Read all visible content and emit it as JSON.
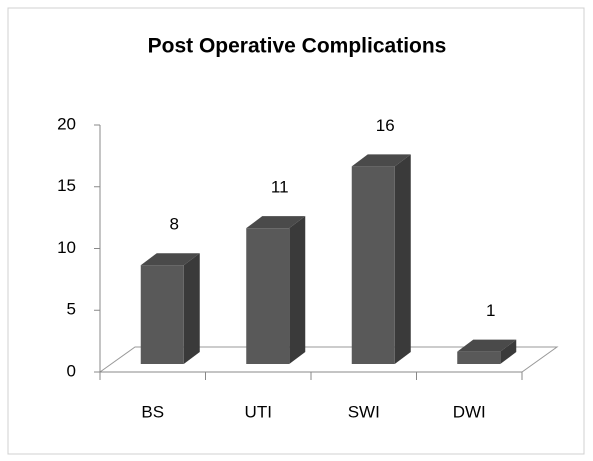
{
  "chart_data": {
    "type": "bar3d",
    "title": "Post Operative Complications",
    "categories": [
      "BS",
      "UTI",
      "SWI",
      "DWI"
    ],
    "values": [
      8,
      11,
      16,
      1
    ],
    "color": "#595959",
    "ylim": [
      0,
      20
    ],
    "yticks": [
      0,
      5,
      10,
      15,
      20
    ]
  }
}
